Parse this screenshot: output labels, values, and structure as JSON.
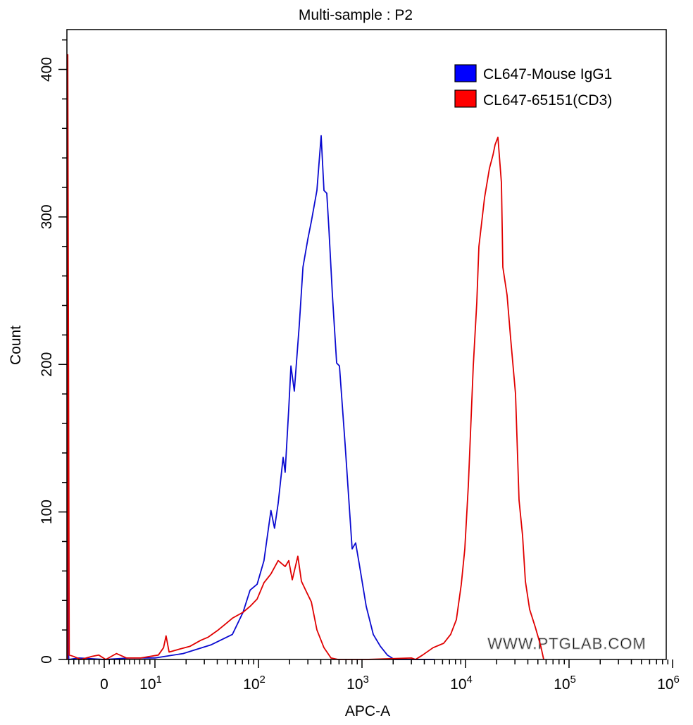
{
  "chart_data": {
    "type": "line",
    "title": "Multi-sample : P2",
    "xlabel": "APC-A",
    "ylabel": "Count",
    "x_scale": "biexponential",
    "xlim": [
      -7.4,
      1000000
    ],
    "ylim": [
      0,
      427
    ],
    "x_ticks": [
      {
        "value": 0,
        "base": "0",
        "exp": ""
      },
      {
        "value": 10,
        "base": "10",
        "exp": "1"
      },
      {
        "value": 100,
        "base": "10",
        "exp": "2"
      },
      {
        "value": 1000,
        "base": "10",
        "exp": "3"
      },
      {
        "value": 10000,
        "base": "10",
        "exp": "4"
      },
      {
        "value": 100000,
        "base": "10",
        "exp": "5"
      },
      {
        "value": 1000000,
        "base": "10",
        "exp": "6"
      }
    ],
    "y_ticks": [
      "0",
      "100",
      "200",
      "300",
      "400"
    ],
    "y_tick_values": [
      0,
      100,
      200,
      300,
      400
    ],
    "grid": false,
    "legend_placement": "top-right",
    "watermark": "WWW.PTGLAB.COM",
    "series": [
      {
        "name": "CL647-Mouse IgG1",
        "color": "#0000ff",
        "line_color": "#0a0ad0",
        "points": [
          [
            -7.3,
            0
          ],
          [
            -7.2,
            104
          ],
          [
            -7.0,
            0
          ],
          [
            -5,
            1
          ],
          [
            0,
            0
          ],
          [
            5,
            1
          ],
          [
            10,
            1
          ],
          [
            18.7,
            4
          ],
          [
            35,
            10
          ],
          [
            56,
            17
          ],
          [
            71,
            32
          ],
          [
            83,
            47
          ],
          [
            97,
            51
          ],
          [
            113,
            67
          ],
          [
            132,
            101
          ],
          [
            143,
            89
          ],
          [
            155,
            106
          ],
          [
            173,
            137
          ],
          [
            181,
            127
          ],
          [
            196,
            170
          ],
          [
            206,
            199
          ],
          [
            222,
            182
          ],
          [
            248,
            227
          ],
          [
            269,
            266
          ],
          [
            300,
            285
          ],
          [
            324,
            297
          ],
          [
            367,
            318
          ],
          [
            403,
            355
          ],
          [
            429,
            318
          ],
          [
            457,
            316
          ],
          [
            479,
            292
          ],
          [
            518,
            247
          ],
          [
            569,
            201
          ],
          [
            606,
            199
          ],
          [
            687,
            146
          ],
          [
            803,
            75
          ],
          [
            869,
            79
          ],
          [
            940,
            65
          ],
          [
            1099,
            36
          ],
          [
            1285,
            17
          ],
          [
            1503,
            9
          ],
          [
            1757,
            3
          ],
          [
            2054,
            0
          ],
          [
            5000,
            0
          ]
        ]
      },
      {
        "name": "CL647-65151(CD3)",
        "color": "#ff0000",
        "line_color": "#e00000",
        "points": [
          [
            -7.3,
            0
          ],
          [
            -7.2,
            410
          ],
          [
            -6.9,
            3
          ],
          [
            -6,
            2
          ],
          [
            -4.6,
            0
          ],
          [
            -2.5,
            2
          ],
          [
            -1.1,
            3
          ],
          [
            0.3,
            0
          ],
          [
            2.4,
            4
          ],
          [
            4.4,
            1
          ],
          [
            7.2,
            1
          ],
          [
            10.8,
            3
          ],
          [
            12.1,
            8
          ],
          [
            12.8,
            16
          ],
          [
            13.7,
            5
          ],
          [
            17.3,
            7
          ],
          [
            21.9,
            9
          ],
          [
            27.7,
            13
          ],
          [
            32.4,
            15
          ],
          [
            40.9,
            20
          ],
          [
            47.9,
            24
          ],
          [
            56,
            28
          ],
          [
            71,
            32
          ],
          [
            83,
            36
          ],
          [
            97,
            41
          ],
          [
            113,
            52
          ],
          [
            132,
            58
          ],
          [
            155,
            67
          ],
          [
            181,
            63
          ],
          [
            196,
            67
          ],
          [
            212,
            54
          ],
          [
            240,
            70
          ],
          [
            260,
            53
          ],
          [
            290,
            46
          ],
          [
            324,
            39
          ],
          [
            367,
            20
          ],
          [
            429,
            8
          ],
          [
            502,
            1
          ],
          [
            587,
            0
          ],
          [
            1100,
            0
          ],
          [
            3000,
            1
          ],
          [
            3290,
            0
          ],
          [
            3850,
            3
          ],
          [
            4860,
            8
          ],
          [
            6150,
            11
          ],
          [
            7190,
            17
          ],
          [
            8160,
            27
          ],
          [
            9110,
            51
          ],
          [
            9850,
            75
          ],
          [
            10650,
            118
          ],
          [
            11880,
            199
          ],
          [
            12850,
            242
          ],
          [
            13470,
            280
          ],
          [
            15270,
            313
          ],
          [
            17030,
            333
          ],
          [
            18420,
            342
          ],
          [
            19320,
            349
          ],
          [
            20560,
            354
          ],
          [
            22230,
            323
          ],
          [
            22950,
            266
          ],
          [
            25190,
            247
          ],
          [
            27250,
            218
          ],
          [
            30400,
            180
          ],
          [
            32890,
            108
          ],
          [
            35560,
            84
          ],
          [
            37850,
            53
          ],
          [
            41580,
            34
          ],
          [
            47120,
            22
          ],
          [
            53400,
            9
          ],
          [
            56870,
            0
          ]
        ]
      }
    ]
  }
}
